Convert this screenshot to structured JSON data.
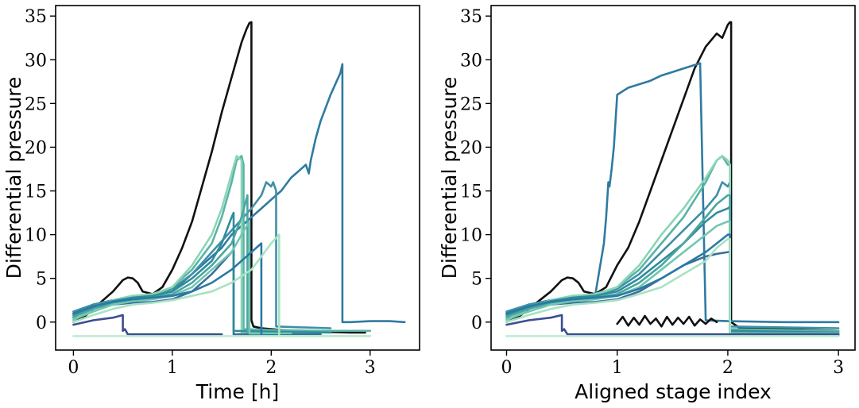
{
  "chart_data": [
    {
      "type": "line",
      "xlabel": "Time [h]",
      "ylabel": "Differential pressure",
      "xlim": [
        -0.18,
        3.5
      ],
      "ylim": [
        -3.2,
        36.2
      ],
      "xticks": [
        0,
        1,
        2,
        3
      ],
      "yticks": [
        0,
        5,
        10,
        15,
        20,
        25,
        30,
        35
      ],
      "grid": false,
      "series": [
        {
          "color": "#111111",
          "x": [
            0,
            0.1,
            0.2,
            0.3,
            0.4,
            0.5,
            0.55,
            0.6,
            0.65,
            0.7,
            0.8,
            0.9,
            1.0,
            1.1,
            1.2,
            1.3,
            1.4,
            1.5,
            1.6,
            1.7,
            1.75,
            1.78,
            1.8,
            1.8,
            1.82,
            1.9,
            2.0,
            2.2,
            2.5,
            2.8,
            2.95
          ],
          "y": [
            0,
            0.5,
            1.5,
            2.5,
            3.5,
            4.8,
            5.1,
            5.0,
            4.5,
            3.5,
            3.2,
            4.0,
            6.0,
            8.5,
            11.5,
            15.5,
            19.5,
            24.0,
            28.0,
            32.0,
            33.5,
            34.2,
            34.3,
            0.2,
            -0.5,
            -0.7,
            -0.8,
            -1.0,
            -1.1,
            -1.2,
            -1.2
          ]
        },
        {
          "color": "#2f7aa1",
          "x": [
            0,
            0.2,
            0.4,
            0.6,
            0.8,
            1.0,
            1.1,
            1.2,
            1.3,
            1.4,
            1.5,
            1.6,
            1.7,
            1.8,
            1.9,
            2.0,
            2.1,
            2.2,
            2.3,
            2.35,
            2.38,
            2.4,
            2.45,
            2.5,
            2.6,
            2.7,
            2.72,
            2.72,
            2.8,
            3.0,
            3.2,
            3.35
          ],
          "y": [
            1.0,
            2.0,
            2.5,
            2.8,
            3.0,
            3.5,
            4.5,
            5.5,
            6.5,
            7.5,
            8.5,
            10.0,
            11.0,
            12.0,
            13.0,
            14.0,
            15.0,
            16.5,
            17.5,
            18.0,
            17.0,
            18.5,
            21.0,
            23.0,
            26.0,
            28.5,
            29.5,
            0.0,
            0.0,
            0.1,
            0.1,
            0.0
          ]
        },
        {
          "color": "#3f8fa8",
          "x": [
            0,
            0.2,
            0.4,
            0.6,
            0.8,
            1.0,
            1.2,
            1.4,
            1.6,
            1.8,
            1.9,
            1.95,
            2.0,
            2.02,
            2.05,
            2.05,
            2.3,
            2.6
          ],
          "y": [
            1.2,
            2.0,
            2.5,
            2.7,
            3.0,
            3.8,
            5.5,
            8.0,
            10.5,
            13.0,
            14.5,
            16.0,
            15.5,
            16.0,
            15.0,
            -0.5,
            -0.6,
            -0.7
          ]
        },
        {
          "color": "#5ab3a7",
          "x": [
            0,
            0.2,
            0.4,
            0.6,
            0.8,
            1.0,
            1.2,
            1.4,
            1.5,
            1.6,
            1.65,
            1.7,
            1.72,
            1.72,
            2.0,
            2.5,
            3.0
          ],
          "y": [
            0.5,
            1.8,
            2.5,
            3.0,
            3.0,
            4.0,
            6.0,
            9.0,
            12.0,
            16.0,
            18.5,
            19.0,
            18.0,
            -0.8,
            -0.9,
            -1.0,
            -1.0
          ]
        },
        {
          "color": "#8ad6b5",
          "x": [
            0,
            0.2,
            0.4,
            0.6,
            0.8,
            1.0,
            1.2,
            1.4,
            1.5,
            1.6,
            1.65,
            1.7,
            1.7,
            2.0,
            2.5
          ],
          "y": [
            0.2,
            1.5,
            2.5,
            3.0,
            3.2,
            4.0,
            6.5,
            10.0,
            13.0,
            17.0,
            19.0,
            18.5,
            -1.2,
            -1.2,
            -1.3
          ]
        },
        {
          "color": "#3b6e9c",
          "x": [
            0,
            0.2,
            0.4,
            0.6,
            0.8,
            1.0,
            1.2,
            1.4,
            1.6,
            1.62,
            1.62,
            2.0,
            2.5
          ],
          "y": [
            1.0,
            1.6,
            2.0,
            2.2,
            2.3,
            2.6,
            3.5,
            5.5,
            8.0,
            8.2,
            -1.4,
            -1.4,
            -1.4
          ]
        },
        {
          "color": "#2f8c9b",
          "x": [
            0,
            0.2,
            0.4,
            0.6,
            0.8,
            1.0,
            1.2,
            1.4,
            1.5,
            1.6,
            1.62,
            1.62,
            2.0,
            2.6
          ],
          "y": [
            0.8,
            1.8,
            2.4,
            2.8,
            3.0,
            3.5,
            5.0,
            7.0,
            9.0,
            12.0,
            12.5,
            -1.0,
            -1.1,
            -1.2
          ]
        },
        {
          "color": "#4aa6a3",
          "x": [
            0,
            0.2,
            0.4,
            0.6,
            0.8,
            1.0,
            1.2,
            1.4,
            1.6,
            1.7,
            1.76,
            1.76,
            2.0
          ],
          "y": [
            0.6,
            1.5,
            2.2,
            2.6,
            2.8,
            3.2,
            4.5,
            6.5,
            9.0,
            12.0,
            14.5,
            -1.2,
            -1.3
          ]
        },
        {
          "color": "#72c6b0",
          "x": [
            0,
            0.2,
            0.4,
            0.6,
            0.8,
            1.0,
            1.2,
            1.4,
            1.6,
            1.7,
            1.78,
            1.78,
            2.2
          ],
          "y": [
            0.3,
            1.2,
            2.0,
            2.4,
            2.6,
            3.0,
            4.0,
            6.0,
            8.0,
            10.0,
            11.5,
            -1.3,
            -1.3
          ]
        },
        {
          "color": "#2a7aa3",
          "x": [
            0,
            0.2,
            0.4,
            0.6,
            0.8,
            1.0,
            1.2,
            1.4,
            1.6,
            1.8,
            1.9,
            1.9,
            2.2
          ],
          "y": [
            1.0,
            1.8,
            2.3,
            2.6,
            2.8,
            3.0,
            3.5,
            4.5,
            6.0,
            8.0,
            9.0,
            -1.5,
            -1.5
          ]
        },
        {
          "color": "#a8e2c4",
          "x": [
            0,
            0.2,
            0.4,
            0.6,
            0.8,
            1.0,
            1.2,
            1.4,
            1.6,
            1.8,
            1.9,
            2.0,
            2.08,
            2.08,
            2.5,
            3.0
          ],
          "y": [
            0.0,
            0.8,
            1.5,
            2.0,
            2.2,
            2.5,
            3.0,
            3.5,
            4.5,
            6.0,
            7.5,
            9.0,
            10.0,
            -1.6,
            -1.6,
            -1.6
          ]
        },
        {
          "color": "#3c4d91",
          "x": [
            0,
            0.2,
            0.4,
            0.5,
            0.5,
            0.52,
            0.55,
            0.6,
            0.8,
            1.0,
            1.2,
            1.5
          ],
          "y": [
            -0.3,
            0.2,
            0.5,
            0.8,
            -1.0,
            -0.8,
            -1.4,
            -1.4,
            -1.4,
            -1.4,
            -1.4,
            -1.4
          ]
        },
        {
          "color": "#bfeccf",
          "x": [
            0,
            0.5,
            1.0,
            1.5,
            2.0,
            2.5,
            3.0
          ],
          "y": [
            -1.6,
            -1.6,
            -1.6,
            -1.6,
            -1.6,
            -1.6,
            -1.6
          ]
        }
      ]
    },
    {
      "type": "line",
      "xlabel": "Aligned stage index",
      "ylabel": "Differential pressure",
      "xlim": [
        -0.14,
        3.15
      ],
      "ylim": [
        -3.2,
        36.2
      ],
      "xticks": [
        0,
        1,
        2,
        3
      ],
      "yticks": [
        0,
        5,
        10,
        15,
        20,
        25,
        30,
        35
      ],
      "grid": false,
      "series": [
        {
          "color": "#111111",
          "x": [
            0,
            0.1,
            0.2,
            0.3,
            0.4,
            0.5,
            0.55,
            0.6,
            0.65,
            0.7,
            0.8,
            0.9,
            1.0,
            1.1,
            1.2,
            1.3,
            1.4,
            1.5,
            1.6,
            1.7,
            1.8,
            1.9,
            1.95,
            2.0,
            2.02,
            2.03,
            2.03,
            2.1,
            2.5,
            3.0
          ],
          "y": [
            0,
            0.5,
            1.5,
            2.5,
            3.5,
            4.8,
            5.1,
            5.0,
            4.5,
            3.5,
            3.2,
            4.0,
            6.5,
            8.5,
            11.5,
            15.0,
            18.5,
            22.0,
            25.5,
            29.0,
            31.5,
            33.0,
            32.5,
            34.0,
            34.3,
            34.3,
            0.0,
            -0.6,
            -0.8,
            -1.0
          ]
        },
        {
          "color": "#2f7aa1",
          "x": [
            0,
            0.2,
            0.4,
            0.6,
            0.8,
            0.88,
            0.9,
            0.92,
            0.93,
            0.95,
            0.97,
            1.0,
            1.1,
            1.2,
            1.3,
            1.4,
            1.5,
            1.6,
            1.7,
            1.75,
            1.75,
            1.8,
            2.0,
            2.5,
            3.0
          ],
          "y": [
            1.0,
            2.0,
            2.5,
            2.8,
            3.0,
            9.0,
            12.0,
            16.0,
            15.5,
            17.5,
            20.0,
            26.0,
            26.8,
            27.2,
            27.6,
            28.2,
            28.6,
            29.0,
            29.4,
            29.6,
            29.5,
            0.2,
            0.1,
            0.0,
            0.0
          ]
        },
        {
          "color": "#3f8fa8",
          "x": [
            0,
            0.2,
            0.4,
            0.6,
            0.8,
            1.0,
            1.2,
            1.4,
            1.6,
            1.8,
            1.9,
            1.95,
            2.0,
            2.02,
            2.02,
            2.5,
            3.0
          ],
          "y": [
            1.2,
            2.0,
            2.5,
            2.7,
            3.0,
            3.8,
            5.5,
            8.0,
            10.5,
            13.0,
            14.5,
            16.0,
            15.5,
            16.0,
            -0.5,
            -0.6,
            -0.7
          ]
        },
        {
          "color": "#5ab3a7",
          "x": [
            0,
            0.2,
            0.4,
            0.6,
            0.8,
            1.0,
            1.2,
            1.4,
            1.6,
            1.8,
            1.9,
            1.95,
            2.0,
            2.02,
            2.02,
            2.5,
            3.0
          ],
          "y": [
            0.5,
            1.8,
            2.5,
            3.0,
            3.0,
            4.0,
            6.0,
            9.0,
            12.0,
            16.0,
            18.5,
            19.0,
            18.0,
            18.0,
            -0.8,
            -0.9,
            -1.0
          ]
        },
        {
          "color": "#8ad6b5",
          "x": [
            0,
            0.2,
            0.4,
            0.6,
            0.8,
            1.0,
            1.2,
            1.4,
            1.6,
            1.8,
            1.9,
            1.95,
            2.0,
            2.02,
            2.02,
            2.5,
            3.0
          ],
          "y": [
            0.2,
            1.5,
            2.5,
            3.0,
            3.2,
            4.0,
            6.5,
            10.0,
            13.0,
            16.5,
            18.5,
            19.0,
            18.5,
            18.0,
            -1.2,
            -1.2,
            -1.3
          ]
        },
        {
          "color": "#3b6e9c",
          "x": [
            0,
            0.2,
            0.4,
            0.6,
            0.8,
            1.0,
            1.2,
            1.4,
            1.6,
            1.8,
            1.9,
            2.0,
            2.02,
            2.02,
            2.5,
            3.0
          ],
          "y": [
            1.0,
            1.6,
            2.0,
            2.2,
            2.3,
            2.6,
            3.5,
            5.0,
            6.5,
            7.5,
            7.8,
            8.0,
            8.0,
            -1.4,
            -1.4,
            -1.4
          ]
        },
        {
          "color": "#2f8c9b",
          "x": [
            0,
            0.2,
            0.4,
            0.6,
            0.8,
            1.0,
            1.2,
            1.4,
            1.6,
            1.8,
            1.9,
            2.0,
            2.02,
            2.02,
            2.5,
            3.0
          ],
          "y": [
            0.8,
            1.8,
            2.4,
            2.8,
            3.0,
            3.5,
            5.0,
            7.0,
            9.0,
            11.5,
            12.5,
            13.0,
            13.2,
            -1.0,
            -1.1,
            -1.2
          ]
        },
        {
          "color": "#4aa6a3",
          "x": [
            0,
            0.2,
            0.4,
            0.6,
            0.8,
            1.0,
            1.2,
            1.4,
            1.6,
            1.8,
            1.9,
            2.0,
            2.02,
            2.02,
            2.5,
            3.0
          ],
          "y": [
            0.6,
            1.5,
            2.2,
            2.6,
            2.8,
            3.2,
            4.5,
            6.5,
            9.0,
            12.0,
            13.5,
            14.5,
            14.5,
            -1.2,
            -1.3,
            -1.3
          ]
        },
        {
          "color": "#72c6b0",
          "x": [
            0,
            0.2,
            0.4,
            0.6,
            0.8,
            1.0,
            1.2,
            1.4,
            1.6,
            1.8,
            1.9,
            2.0,
            2.02,
            2.02,
            2.5,
            3.0
          ],
          "y": [
            0.3,
            1.2,
            2.0,
            2.4,
            2.6,
            3.0,
            4.0,
            6.0,
            8.0,
            10.0,
            11.0,
            11.5,
            11.5,
            -1.3,
            -1.3,
            -1.3
          ]
        },
        {
          "color": "#2a7aa3",
          "x": [
            0,
            0.2,
            0.4,
            0.6,
            0.8,
            1.0,
            1.2,
            1.4,
            1.6,
            1.8,
            1.9,
            2.0,
            2.02,
            2.02,
            2.5,
            3.0
          ],
          "y": [
            1.0,
            1.8,
            2.3,
            2.6,
            2.8,
            3.0,
            3.8,
            5.0,
            6.5,
            8.0,
            9.0,
            10.0,
            10.0,
            -1.5,
            -1.5,
            -1.5
          ]
        },
        {
          "color": "#a8e2c4",
          "x": [
            0,
            0.2,
            0.4,
            0.6,
            0.8,
            1.0,
            1.2,
            1.4,
            1.6,
            1.8,
            1.9,
            2.0,
            2.02,
            2.02,
            2.5,
            3.0
          ],
          "y": [
            0.0,
            0.8,
            1.5,
            2.0,
            2.2,
            2.5,
            3.2,
            4.0,
            5.5,
            7.0,
            8.5,
            9.5,
            9.5,
            -1.6,
            -1.6,
            -1.6
          ]
        },
        {
          "color": "#3c4d91",
          "x": [
            0,
            0.2,
            0.4,
            0.5,
            0.5,
            0.52,
            0.55,
            0.6,
            0.8,
            1.0,
            1.2,
            1.5,
            2.0,
            2.5,
            3.0
          ],
          "y": [
            -0.3,
            0.2,
            0.5,
            0.8,
            -1.0,
            -0.8,
            -1.4,
            -1.4,
            -1.4,
            -1.4,
            -1.4,
            -1.4,
            -1.4,
            -1.4,
            -1.4
          ]
        },
        {
          "color": "#111111",
          "x": [
            1.0,
            1.05,
            1.1,
            1.15,
            1.2,
            1.25,
            1.3,
            1.35,
            1.4,
            1.45,
            1.5,
            1.55,
            1.6,
            1.65,
            1.7,
            1.75,
            1.8,
            1.85,
            1.9
          ],
          "y": [
            -0.2,
            0.6,
            -0.4,
            0.5,
            -0.3,
            0.7,
            -0.2,
            0.4,
            -0.5,
            0.6,
            -0.3,
            0.5,
            -0.2,
            0.6,
            -0.4,
            0.3,
            -0.2,
            0.4,
            0.0
          ]
        },
        {
          "color": "#bfeccf",
          "x": [
            0,
            0.5,
            1.0,
            1.5,
            2.0,
            2.5,
            3.0
          ],
          "y": [
            -1.6,
            -1.6,
            -1.6,
            -1.6,
            -1.6,
            -1.6,
            -1.6
          ]
        }
      ]
    }
  ]
}
